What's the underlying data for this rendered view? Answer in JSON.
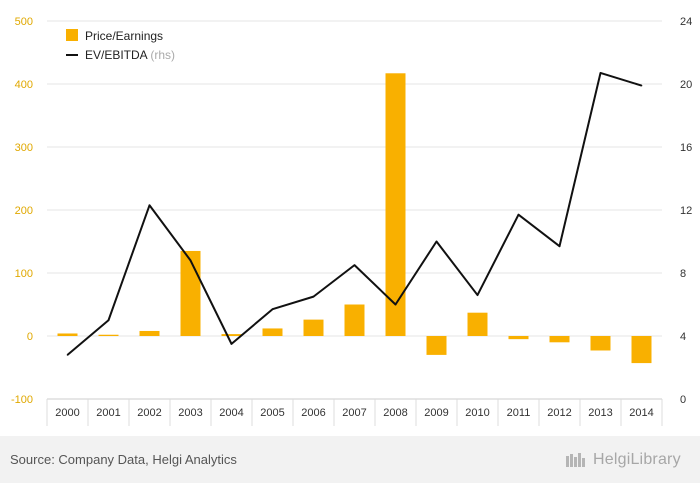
{
  "chart_data": {
    "type": "bar+line",
    "categories": [
      "2000",
      "2001",
      "2002",
      "2003",
      "2004",
      "2005",
      "2006",
      "2007",
      "2008",
      "2009",
      "2010",
      "2011",
      "2012",
      "2013",
      "2014"
    ],
    "series": [
      {
        "name": "Price/Earnings",
        "type": "bar",
        "axis": "left",
        "color": "#f9b000",
        "values": [
          4,
          2,
          8,
          135,
          3,
          12,
          26,
          50,
          417,
          -30,
          37,
          -5,
          -10,
          -23,
          -43
        ]
      },
      {
        "name": "EV/EBITDA",
        "legend_suffix": "(rhs)",
        "type": "line",
        "axis": "right",
        "color": "#111111",
        "values": [
          2.8,
          5.0,
          12.3,
          8.8,
          3.5,
          5.7,
          6.5,
          8.5,
          6.0,
          10.0,
          6.6,
          11.7,
          9.7,
          20.7,
          19.9
        ]
      }
    ],
    "y_left": {
      "min": -100,
      "max": 500,
      "ticks": [
        -100,
        0,
        100,
        200,
        300,
        400,
        500
      ],
      "tick_color": "#e0a800"
    },
    "y_right": {
      "min": 0,
      "max": 24,
      "ticks": [
        0,
        4,
        8,
        12,
        16,
        20,
        24
      ]
    },
    "gridlines": true,
    "legend_position": "top-left"
  },
  "footer": {
    "source": "Source: Company Data, Helgi Analytics",
    "logo_text": "HelgiLibrary"
  }
}
